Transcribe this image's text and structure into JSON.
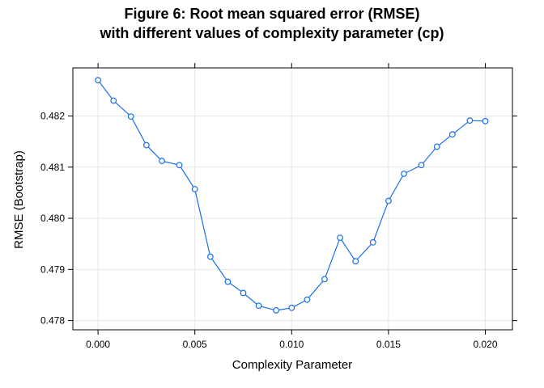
{
  "chart_data": {
    "type": "line",
    "title_lines": [
      "Figure 6: Root mean squared error (RMSE)",
      "with different values of complexity parameter (cp)"
    ],
    "xlabel": "Complexity Parameter",
    "ylabel": "RMSE (Bootstrap)",
    "xlim": [
      -0.0013,
      0.0214
    ],
    "ylim": [
      0.47782,
      0.48294
    ],
    "x_ticks": [
      0.0,
      0.005,
      0.01,
      0.015,
      0.02
    ],
    "x_tick_labels": [
      "0.000",
      "0.005",
      "0.010",
      "0.015",
      "0.020"
    ],
    "y_ticks": [
      0.478,
      0.479,
      0.48,
      0.481,
      0.482
    ],
    "y_tick_labels": [
      "0.478",
      "0.479",
      "0.480",
      "0.481",
      "0.482"
    ],
    "grid": true,
    "series": [
      {
        "color": "#1a6ee8",
        "marker": "open-circle",
        "x": [
          0.0,
          0.0008,
          0.0017,
          0.0025,
          0.0033,
          0.0042,
          0.005,
          0.0058,
          0.0067,
          0.0075,
          0.0083,
          0.0092,
          0.01,
          0.0108,
          0.0117,
          0.0125,
          0.0133,
          0.0142,
          0.015,
          0.0158,
          0.0167,
          0.0175,
          0.0183,
          0.0192,
          0.02
        ],
        "y": [
          0.4827,
          0.4823,
          0.48199,
          0.48143,
          0.48112,
          0.48104,
          0.48057,
          0.47925,
          0.47876,
          0.47854,
          0.47829,
          0.4782,
          0.47825,
          0.47841,
          0.47881,
          0.47962,
          0.47916,
          0.47953,
          0.48034,
          0.48087,
          0.48104,
          0.4814,
          0.48164,
          0.48191,
          0.4819
        ]
      }
    ]
  }
}
